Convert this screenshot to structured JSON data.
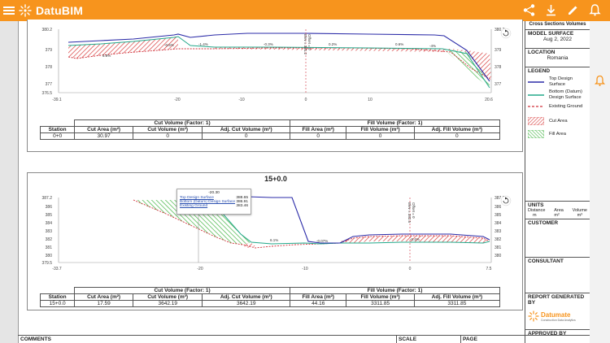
{
  "app": {
    "title": "DatuBIM"
  },
  "header_icons": [
    "share-icon",
    "download-icon",
    "edit-icon",
    "bell-icon"
  ],
  "colors": {
    "accent": "#f7941d",
    "top_design": "#2b2ba8",
    "bottom_design": "#23a88a",
    "existing_ground": "#d0303a",
    "cut_fill": "#d94040",
    "fill_fill": "#44b544"
  },
  "panel1": {
    "y_ticks": [
      "380.2",
      "379",
      "378",
      "377",
      "376.5"
    ],
    "x_ticks": [
      "-39.1",
      "-20",
      "-10",
      "0",
      "10",
      "20.6"
    ],
    "slope_labels": [
      "5.8%",
      "-0.5%",
      "-1.4%",
      "-0.3%",
      "0.2%",
      "0.6%",
      "-4%"
    ],
    "offset_label": "Offset = 0",
    "elev_label": "Elev = 381.2",
    "table": {
      "group_cut": "Cut Volume (Factor: 1)",
      "group_fill": "Fill Volume (Factor: 1)",
      "headers": [
        "Station",
        "Cut Area (m²)",
        "Cut Volume (m³)",
        "Adj. Cut Volume (m³)",
        "Fill Area (m²)",
        "Fill Volume (m³)",
        "Adj. Fill Volume (m³)"
      ],
      "row": [
        "0+0",
        "30.97",
        "0",
        "0",
        "0",
        "0",
        "0"
      ]
    }
  },
  "panel2": {
    "title": "15+0.0",
    "y_ticks": [
      "387.2",
      "386",
      "385",
      "384",
      "383",
      "382",
      "381",
      "380",
      "379.5"
    ],
    "x_ticks": [
      "-33.7",
      "-20",
      "-10",
      "0",
      "7.5"
    ],
    "slope_labels": [
      "6.1%",
      "-0.07%",
      "-0.4%"
    ],
    "offset_label": "Offset = 0",
    "elev_label": "Elev = 382.5",
    "tooltip": {
      "title": "-20.30",
      "rows": [
        {
          "label": "Top Design Surface",
          "value": "388.65"
        },
        {
          "label": "Bottom (Datum) Design Surface",
          "value": "386.91"
        },
        {
          "label": "Existing Ground",
          "value": "383.46"
        }
      ]
    },
    "table": {
      "group_cut": "Cut Volume (Factor: 1)",
      "group_fill": "Fill Volume (Factor: 1)",
      "headers": [
        "Station",
        "Cut Area (m²)",
        "Cut Volume (m³)",
        "Adj. Cut Volume (m³)",
        "Fill Area (m²)",
        "Fill Volume (m³)",
        "Adj. Fill Volume (m³)"
      ],
      "row": [
        "15+0.0",
        "17.59",
        "3642.19",
        "3642.19",
        "44.16",
        "3311.85",
        "3311.85"
      ]
    }
  },
  "sidebar": {
    "report_title": "Cross Sections Volumes",
    "model_surface_label": "MODEL SURFACE",
    "model_surface_date": "Aug 2, 2022",
    "location_label": "LOCATION",
    "location_value": "Romania",
    "legend_label": "LEGEND",
    "legend": [
      {
        "label": "Top Design Surface",
        "icon": "top-design-line"
      },
      {
        "label": "Bottom (Datum) Design Surface",
        "icon": "bottom-design-line"
      },
      {
        "label": "Existing Ground",
        "icon": "existing-ground-line"
      },
      {
        "label": "Cut Area",
        "icon": "cut-hatch"
      },
      {
        "label": "Fill Area",
        "icon": "fill-hatch"
      }
    ],
    "units_label": "UNITS",
    "units": [
      {
        "name": "Distance",
        "unit": "m"
      },
      {
        "name": "Area",
        "unit": "m²"
      },
      {
        "name": "Volume",
        "unit": "m³"
      }
    ],
    "customer_label": "CUSTOMER",
    "consultant_label": "CONSULTANT",
    "report_generated_label": "REPORT GENERATED BY",
    "company_name": "Datumate",
    "company_tagline": "Construction Data Analytics",
    "approved_label": "APPROVED BY"
  },
  "footer": {
    "comments": "COMMENTS",
    "scale": "SCALE",
    "page": "PAGE"
  }
}
